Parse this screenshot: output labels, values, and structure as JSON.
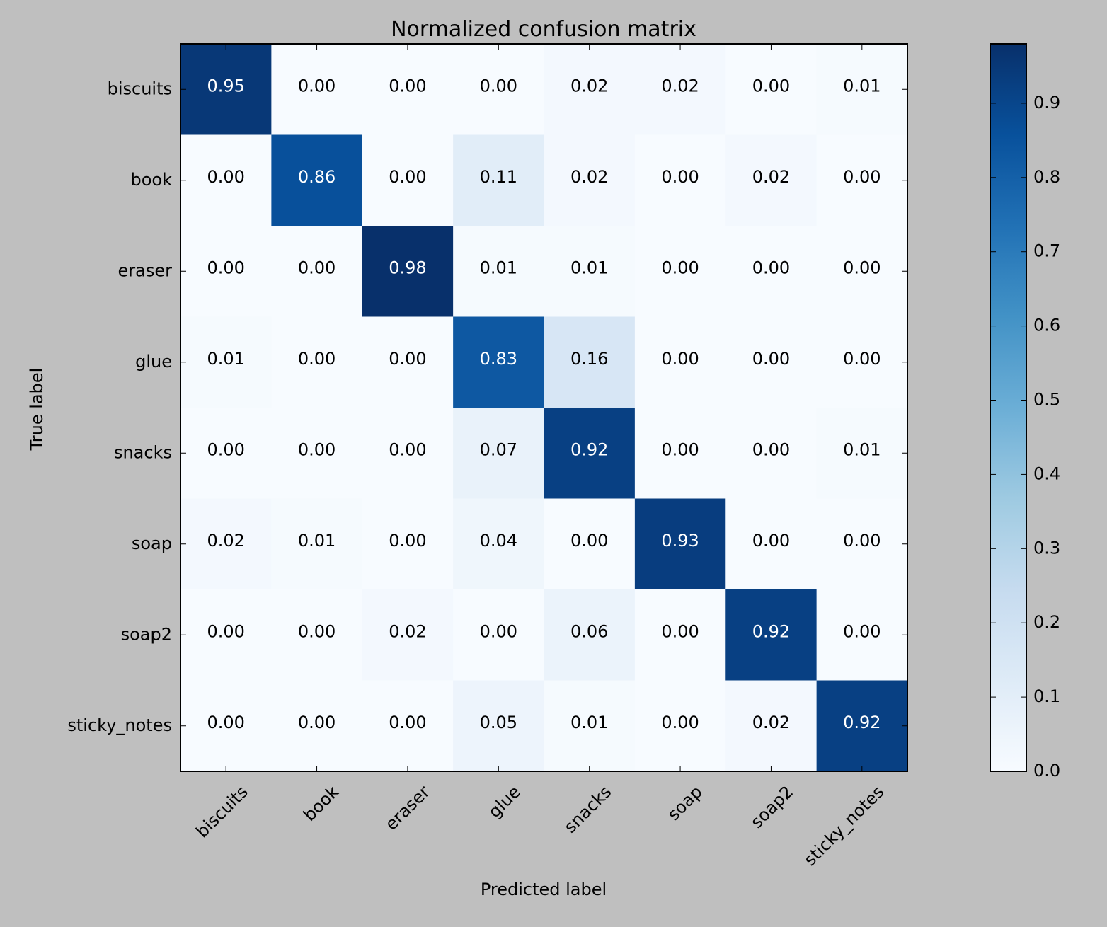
{
  "chart_data": {
    "type": "heatmap",
    "title": "Normalized confusion matrix",
    "xlabel": "Predicted label",
    "ylabel": "True label",
    "x_categories": [
      "biscuits",
      "book",
      "eraser",
      "glue",
      "snacks",
      "soap",
      "soap2",
      "sticky_notes"
    ],
    "y_categories": [
      "biscuits",
      "book",
      "eraser",
      "glue",
      "snacks",
      "soap",
      "soap2",
      "sticky_notes"
    ],
    "values": [
      [
        0.95,
        0.0,
        0.0,
        0.0,
        0.02,
        0.02,
        0.0,
        0.01
      ],
      [
        0.0,
        0.86,
        0.0,
        0.11,
        0.02,
        0.0,
        0.02,
        0.0
      ],
      [
        0.0,
        0.0,
        0.98,
        0.01,
        0.01,
        0.0,
        0.0,
        0.0
      ],
      [
        0.01,
        0.0,
        0.0,
        0.83,
        0.16,
        0.0,
        0.0,
        0.0
      ],
      [
        0.0,
        0.0,
        0.0,
        0.07,
        0.92,
        0.0,
        0.0,
        0.01
      ],
      [
        0.02,
        0.01,
        0.0,
        0.04,
        0.0,
        0.93,
        0.0,
        0.0
      ],
      [
        0.0,
        0.0,
        0.02,
        0.0,
        0.06,
        0.0,
        0.92,
        0.0
      ],
      [
        0.0,
        0.0,
        0.0,
        0.05,
        0.01,
        0.0,
        0.02,
        0.92
      ]
    ],
    "value_format": "0.00",
    "colormap": "Blues",
    "colorbar": {
      "range": [
        0.0,
        0.98
      ],
      "ticks": [
        0.0,
        0.1,
        0.2,
        0.3,
        0.4,
        0.5,
        0.6,
        0.7,
        0.8,
        0.9
      ],
      "tick_labels": [
        "0.0",
        "0.1",
        "0.2",
        "0.3",
        "0.4",
        "0.5",
        "0.6",
        "0.7",
        "0.8",
        "0.9"
      ]
    },
    "x_tick_rotation_deg": 45,
    "colors": {
      "background": "#bfbfbf",
      "frame": "#000000",
      "text_dark": "#000000",
      "text_light": "#ffffff"
    }
  }
}
